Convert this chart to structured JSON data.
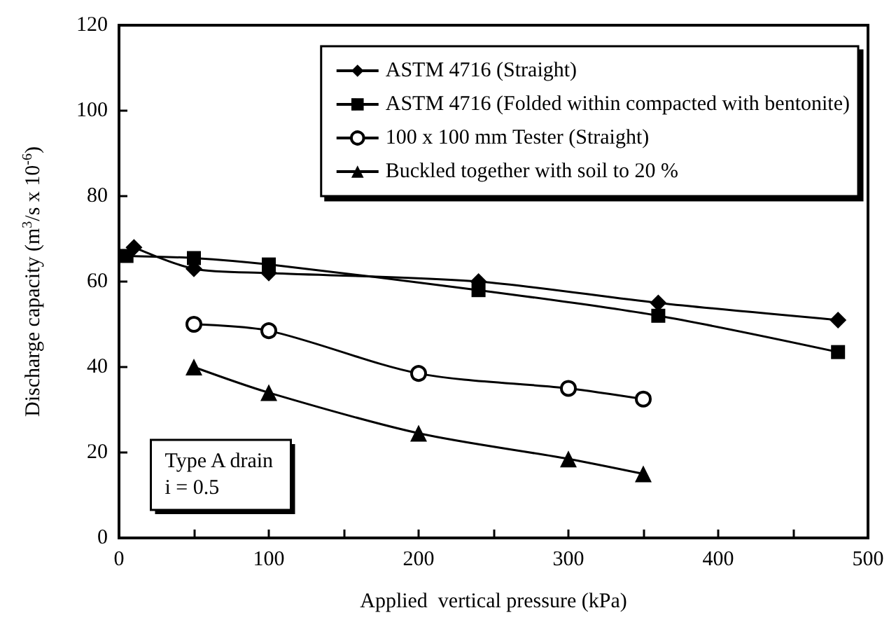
{
  "chart_data": {
    "type": "line",
    "xlabel": "Applied  vertical pressure (kPa)",
    "ylabel": "Discharge capacity (m$^{3}$/s x 10$^{-6}$)",
    "xlim": [
      0,
      500
    ],
    "xticks": [
      0,
      {
        "value": 50,
        "label": null
      },
      100,
      {
        "value": 150,
        "label": null
      },
      200,
      {
        "value": 250,
        "label": null
      },
      300,
      {
        "value": 350,
        "label": null
      },
      400,
      {
        "value": 450,
        "label": null
      },
      500
    ],
    "ylim": [
      0,
      120
    ],
    "yticks": [
      0,
      20,
      40,
      60,
      80,
      100,
      120
    ],
    "grid": false,
    "legend": "top right",
    "line_style": "solid",
    "annotations": [
      "Type A drain\ni = 0.5"
    ],
    "series": [
      {
        "name": "ASTM 4716 (Straight)",
        "color": "#000000",
        "marker": "diamond",
        "x": [
          10,
          50,
          100,
          240,
          360,
          480
        ],
        "values": [
          68,
          63,
          62,
          60,
          55,
          51
        ]
      },
      {
        "name": "ASTM 4716 (Folded within compacted with bentonite)",
        "color": "#000000",
        "marker": "square",
        "x": [
          5,
          50,
          100,
          240,
          360,
          480
        ],
        "values": [
          66,
          65.5,
          64,
          58,
          52,
          43.5
        ]
      },
      {
        "name": "100 x 100 mm Tester (Straight)",
        "color": "#000000",
        "marker": "circle",
        "x": [
          50,
          100,
          200,
          300,
          350
        ],
        "values": [
          50,
          48.5,
          38.5,
          35,
          32.5
        ]
      },
      {
        "name": "Buckled together with soil to 20 %",
        "color": "#000000",
        "marker": "triangle",
        "x": [
          50,
          100,
          200,
          300,
          350
        ],
        "values": [
          40,
          34,
          24.5,
          18.5,
          15
        ]
      }
    ]
  }
}
